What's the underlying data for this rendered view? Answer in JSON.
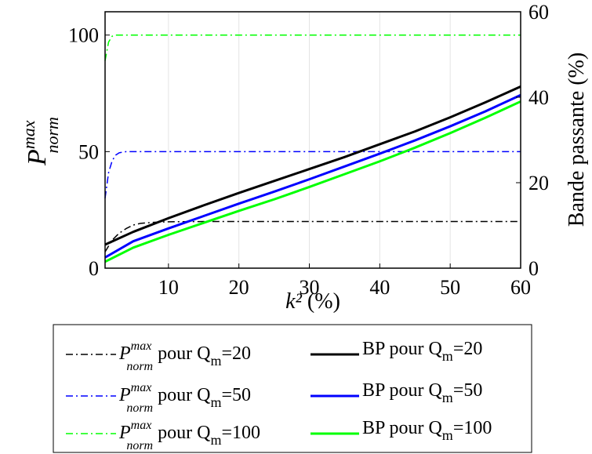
{
  "chart_data": {
    "type": "line",
    "x_axis": {
      "label_main": "k²",
      "label_unit": " (%)",
      "range": [
        1,
        60
      ],
      "ticks": [
        10,
        20,
        30,
        40,
        50,
        60
      ],
      "grid": true
    },
    "y_left_axis": {
      "label_base": "P",
      "label_sup": "max",
      "label_sub": "norm",
      "range": [
        0,
        110
      ],
      "ticks": [
        0,
        50,
        100
      ]
    },
    "y_right_axis": {
      "label": "Bande passante (%)",
      "range": [
        0,
        60
      ],
      "ticks": [
        0,
        20,
        40,
        60
      ]
    },
    "series": [
      {
        "name": "P_norm^max pour Q_m=20",
        "axis": "left",
        "style": "dashdot",
        "color": "#000000",
        "x": [
          1,
          2,
          3,
          4,
          5,
          6,
          8,
          10,
          15,
          20,
          30,
          40,
          50,
          60
        ],
        "y": [
          7,
          12,
          15,
          17,
          18.5,
          19.2,
          19.7,
          19.9,
          20,
          20,
          20,
          20,
          20,
          20
        ]
      },
      {
        "name": "P_norm^max pour Q_m=50",
        "axis": "left",
        "style": "dashdot",
        "color": "#0000ff",
        "x": [
          1,
          1.5,
          2,
          2.5,
          3,
          4,
          5,
          10,
          20,
          40,
          60
        ],
        "y": [
          30,
          41,
          46,
          48.5,
          49.5,
          50,
          50,
          50,
          50,
          50,
          50
        ]
      },
      {
        "name": "P_norm^max pour Q_m=100",
        "axis": "left",
        "style": "dashdot",
        "color": "#00ff00",
        "x": [
          1,
          1.5,
          2,
          2.5,
          3,
          5,
          10,
          20,
          40,
          60
        ],
        "y": [
          89,
          97,
          99.5,
          100,
          100,
          100,
          100,
          100,
          100,
          100
        ]
      },
      {
        "name": "BP pour Q_m=20",
        "axis": "right",
        "style": "solid",
        "color": "#000000",
        "x": [
          1,
          5,
          10,
          15,
          20,
          25,
          30,
          35,
          40,
          45,
          50,
          55,
          60
        ],
        "y": [
          5.5,
          8.5,
          11.7,
          14.7,
          17.6,
          20.4,
          23.2,
          26,
          29,
          32,
          35.3,
          38.8,
          42.5
        ]
      },
      {
        "name": "BP pour Q_m=50",
        "axis": "right",
        "style": "solid",
        "color": "#0000ff",
        "x": [
          1,
          5,
          10,
          15,
          20,
          25,
          30,
          35,
          40,
          45,
          50,
          55,
          60
        ],
        "y": [
          2.5,
          6.3,
          9.3,
          12.2,
          15.1,
          17.9,
          20.8,
          23.8,
          26.8,
          29.9,
          33.2,
          36.7,
          40.5
        ]
      },
      {
        "name": "BP pour Q_m=100",
        "axis": "right",
        "style": "solid",
        "color": "#00ff00",
        "x": [
          1,
          5,
          10,
          15,
          20,
          25,
          30,
          35,
          40,
          45,
          50,
          55,
          60
        ],
        "y": [
          1.5,
          4.8,
          7.8,
          10.6,
          13.4,
          16.1,
          19,
          22,
          25,
          28.2,
          31.6,
          35.2,
          39
        ]
      }
    ],
    "legend": {
      "placement": "below",
      "entries": [
        {
          "base": "P",
          "sup": "max",
          "sub": "norm",
          "text_a": " pour Q",
          "text_m": "m",
          "text_b": "=20"
        },
        {
          "base": "BP pour Q",
          "sub_m": "m",
          "text_b": "=20"
        },
        {
          "base": "P",
          "sup": "max",
          "sub": "norm",
          "text_a": " pour Q",
          "text_m": "m",
          "text_b": "=50"
        },
        {
          "base": "BP pour Q",
          "sub_m": "m",
          "text_b": "=50"
        },
        {
          "base": "P",
          "sup": "max",
          "sub": "norm",
          "text_a": " pour Q",
          "text_m": "m",
          "text_b": "=100"
        },
        {
          "base": "BP pour Q",
          "sub_m": "m",
          "text_b": "=100"
        }
      ]
    }
  }
}
